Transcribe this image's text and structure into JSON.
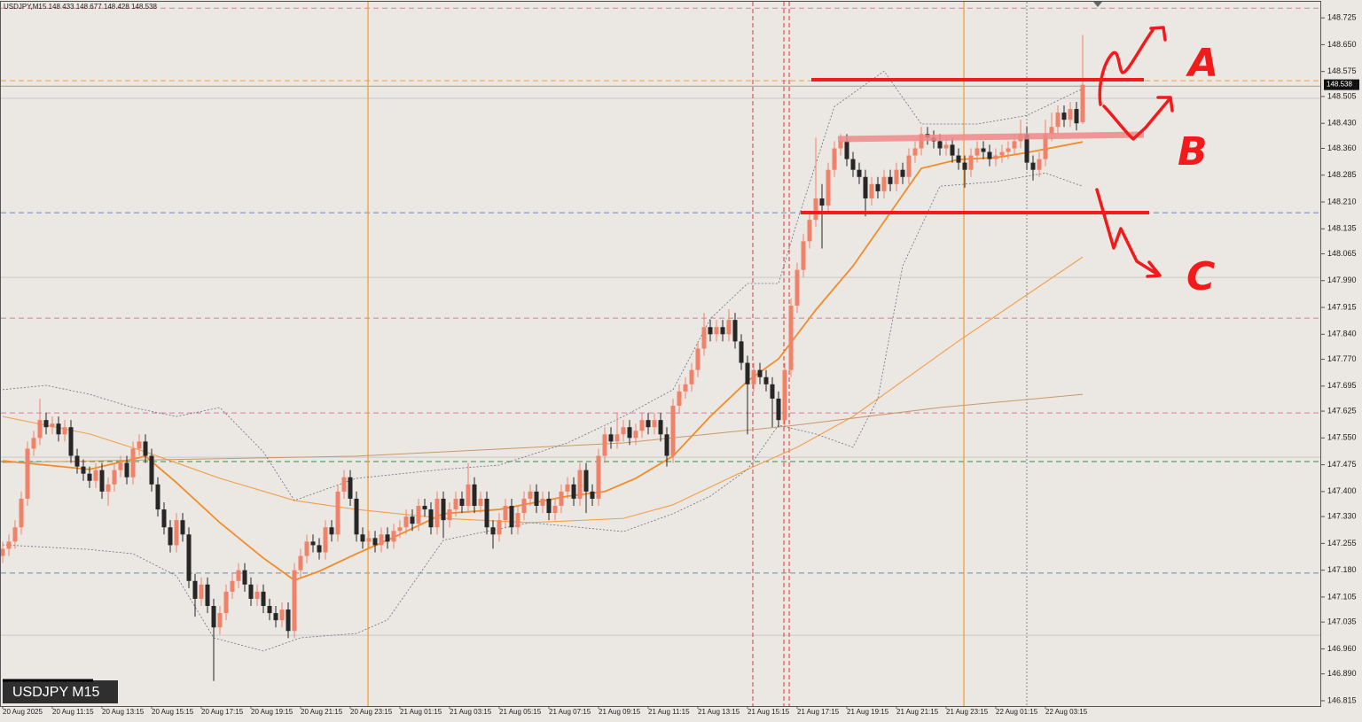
{
  "chart_data": {
    "type": "candlestick",
    "title": "USDJPY,M15",
    "badge": "USDJPY M15",
    "annotations": [
      "A",
      "B",
      "C"
    ],
    "up_color": "#f0826a",
    "down_color": "#262626",
    "ylim": [
      146.8,
      148.77
    ],
    "yticks": [
      {
        "value": 148.725,
        "label": "148.725"
      },
      {
        "value": 148.65,
        "label": "148.650"
      },
      {
        "value": 148.575,
        "label": "148.575"
      },
      {
        "value": 148.505,
        "label": "148.505"
      },
      {
        "value": 148.43,
        "label": "148.430"
      },
      {
        "value": 148.36,
        "label": "148.360"
      },
      {
        "value": 148.285,
        "label": "148.285"
      },
      {
        "value": 148.21,
        "label": "148.210"
      },
      {
        "value": 148.135,
        "label": "148.135"
      },
      {
        "value": 148.065,
        "label": "148.065"
      },
      {
        "value": 147.99,
        "label": "147.990"
      },
      {
        "value": 147.915,
        "label": "147.915"
      },
      {
        "value": 147.84,
        "label": "147.840"
      },
      {
        "value": 147.77,
        "label": "147.770"
      },
      {
        "value": 147.695,
        "label": "147.695"
      },
      {
        "value": 147.625,
        "label": "147.625"
      },
      {
        "value": 147.55,
        "label": "147.550"
      },
      {
        "value": 147.475,
        "label": "147.475"
      },
      {
        "value": 147.4,
        "label": "147.400"
      },
      {
        "value": 147.33,
        "label": "147.330"
      },
      {
        "value": 147.255,
        "label": "147.255"
      },
      {
        "value": 147.18,
        "label": "147.180"
      },
      {
        "value": 147.105,
        "label": "147.105"
      },
      {
        "value": 147.035,
        "label": "147.035"
      },
      {
        "value": 146.96,
        "label": "146.960"
      },
      {
        "value": 146.89,
        "label": "146.890"
      },
      {
        "value": 146.815,
        "label": "146.815"
      }
    ],
    "categories": [
      "20 Aug 2025",
      null,
      null,
      null,
      null,
      null,
      null,
      null,
      "20 Aug 11:15",
      null,
      null,
      null,
      null,
      null,
      null,
      null,
      "20 Aug 13:15",
      null,
      null,
      null,
      null,
      null,
      null,
      null,
      "20 Aug 15:15",
      null,
      null,
      null,
      null,
      null,
      null,
      null,
      "20 Aug 17:15",
      null,
      null,
      null,
      null,
      null,
      null,
      null,
      "20 Aug 19:15",
      null,
      null,
      null,
      null,
      null,
      null,
      null,
      "20 Aug 21:15",
      null,
      null,
      null,
      null,
      null,
      null,
      null,
      "20 Aug 23:15",
      null,
      null,
      null,
      null,
      null,
      null,
      null,
      "21 Aug 01:15",
      null,
      null,
      null,
      null,
      null,
      null,
      null,
      "21 Aug 03:15",
      null,
      null,
      null,
      null,
      null,
      null,
      null,
      "21 Aug 05:15",
      null,
      null,
      null,
      null,
      null,
      null,
      null,
      "21 Aug 07:15",
      null,
      null,
      null,
      null,
      null,
      null,
      null,
      "21 Aug 09:15",
      null,
      null,
      null,
      null,
      null,
      null,
      null,
      "21 Aug 11:15",
      null,
      null,
      null,
      null,
      null,
      null,
      null,
      "21 Aug 13:15",
      null,
      null,
      null,
      null,
      null,
      null,
      null,
      "21 Aug 15:15",
      null,
      null,
      null,
      null,
      null,
      null,
      null,
      "21 Aug 17:15",
      null,
      null,
      null,
      null,
      null,
      null,
      null,
      "21 Aug 19:15",
      null,
      null,
      null,
      null,
      null,
      null,
      null,
      "21 Aug 21:15",
      null,
      null,
      null,
      null,
      null,
      null,
      null,
      "21 Aug 23:15",
      null,
      null,
      null,
      null,
      null,
      null,
      null,
      "22 Aug 01:15",
      null,
      null,
      null,
      null,
      null,
      null,
      null,
      "22 Aug 03:15",
      null,
      null,
      null,
      null,
      null,
      null
    ],
    "open": [
      147.22,
      147.24,
      147.26,
      147.3,
      147.38,
      147.52,
      147.55,
      147.6,
      147.58,
      147.59,
      147.56,
      147.58,
      147.5,
      147.47,
      147.45,
      147.43,
      147.46,
      147.4,
      147.42,
      147.46,
      147.48,
      147.44,
      147.52,
      147.54,
      147.5,
      147.42,
      147.35,
      147.3,
      147.25,
      147.32,
      147.28,
      147.15,
      147.1,
      147.14,
      147.08,
      147.02,
      147.06,
      147.12,
      147.15,
      147.18,
      147.14,
      147.1,
      147.12,
      147.08,
      147.06,
      147.04,
      147.07,
      147.01,
      147.18,
      147.22,
      147.26,
      147.25,
      147.23,
      147.3,
      147.28,
      147.4,
      147.44,
      147.38,
      147.28,
      147.26,
      147.27,
      147.25,
      147.28,
      147.26,
      147.29,
      147.3,
      147.33,
      147.31,
      147.36,
      147.35,
      147.3,
      147.38,
      147.32,
      147.35,
      147.38,
      147.36,
      147.42,
      147.36,
      147.38,
      147.3,
      147.28,
      147.32,
      147.36,
      147.3,
      147.34,
      147.38,
      147.4,
      147.36,
      147.38,
      147.34,
      147.36,
      147.4,
      147.42,
      147.38,
      147.46,
      147.4,
      147.38,
      147.5,
      147.56,
      147.54,
      147.56,
      147.58,
      147.55,
      147.57,
      147.6,
      147.58,
      147.6,
      147.56,
      147.5,
      147.64,
      147.68,
      147.7,
      147.74,
      147.8,
      147.86,
      147.84,
      147.86,
      147.84,
      147.88,
      147.82,
      147.76,
      147.7,
      147.74,
      147.72,
      147.7,
      147.66,
      147.6,
      147.74,
      147.92,
      148.02,
      148.1,
      148.16,
      148.22,
      148.2,
      148.3,
      148.36,
      148.38,
      148.33,
      148.3,
      148.28,
      148.22,
      148.26,
      148.24,
      148.28,
      148.26,
      148.3,
      148.28,
      148.34,
      148.36,
      148.4,
      148.39,
      148.38,
      148.36,
      148.37,
      148.34,
      148.32,
      148.3,
      148.34,
      148.36,
      148.35,
      148.33,
      148.34,
      148.35,
      148.36,
      148.38,
      148.4,
      148.32,
      148.3,
      148.33,
      148.4,
      148.42,
      148.46,
      148.44,
      148.47,
      148.433
    ],
    "high": [
      147.26,
      147.28,
      147.32,
      147.4,
      147.54,
      147.57,
      147.66,
      147.62,
      147.61,
      147.61,
      147.6,
      147.6,
      147.52,
      147.49,
      147.47,
      147.48,
      147.48,
      147.44,
      147.48,
      147.5,
      147.5,
      147.54,
      147.56,
      147.56,
      147.52,
      147.44,
      147.37,
      147.32,
      147.34,
      147.34,
      147.3,
      147.17,
      147.16,
      147.16,
      147.1,
      147.08,
      147.14,
      147.17,
      147.2,
      147.2,
      147.16,
      147.14,
      147.14,
      147.1,
      147.08,
      147.09,
      147.09,
      147.2,
      147.24,
      147.28,
      147.28,
      147.27,
      147.32,
      147.32,
      147.42,
      147.46,
      147.46,
      147.4,
      147.3,
      147.29,
      147.29,
      147.3,
      147.3,
      147.31,
      147.32,
      147.35,
      147.35,
      147.38,
      147.38,
      147.37,
      147.4,
      147.4,
      147.37,
      147.4,
      147.4,
      147.48,
      147.44,
      147.4,
      147.4,
      147.32,
      147.34,
      147.38,
      147.38,
      147.36,
      147.4,
      147.42,
      147.42,
      147.4,
      147.4,
      147.38,
      147.42,
      147.44,
      147.44,
      147.48,
      147.48,
      147.42,
      147.52,
      147.58,
      147.58,
      147.62,
      147.6,
      147.6,
      147.59,
      147.62,
      147.62,
      147.62,
      147.62,
      147.58,
      147.66,
      147.7,
      147.72,
      147.76,
      147.82,
      147.9,
      147.88,
      147.88,
      147.88,
      147.91,
      147.9,
      147.84,
      147.78,
      147.76,
      147.76,
      147.74,
      147.72,
      147.68,
      147.76,
      147.94,
      148.04,
      148.12,
      148.18,
      148.39,
      148.26,
      148.32,
      148.38,
      148.4,
      148.4,
      148.35,
      148.32,
      148.3,
      148.28,
      148.28,
      148.3,
      148.3,
      148.32,
      148.32,
      148.36,
      148.38,
      148.42,
      148.42,
      148.41,
      148.4,
      148.39,
      148.39,
      148.36,
      148.34,
      148.36,
      148.38,
      148.38,
      148.37,
      148.36,
      148.37,
      148.38,
      148.4,
      148.44,
      148.42,
      148.34,
      148.35,
      148.44,
      148.46,
      148.48,
      148.48,
      148.49,
      148.49,
      148.677
    ],
    "low": [
      147.2,
      147.22,
      147.24,
      147.28,
      147.36,
      147.5,
      147.53,
      147.56,
      147.56,
      147.54,
      147.54,
      147.48,
      147.45,
      147.43,
      147.41,
      147.41,
      147.38,
      147.36,
      147.4,
      147.44,
      147.42,
      147.42,
      147.5,
      147.48,
      147.4,
      147.33,
      147.28,
      147.23,
      147.23,
      147.26,
      147.13,
      147.05,
      147.08,
      147.06,
      146.87,
      147.0,
      147.04,
      147.1,
      147.13,
      147.12,
      147.08,
      147.08,
      147.06,
      147.04,
      147.02,
      147.02,
      146.99,
      146.99,
      147.16,
      147.2,
      147.23,
      147.21,
      147.21,
      147.26,
      147.26,
      147.38,
      147.36,
      147.26,
      147.24,
      147.24,
      147.23,
      147.23,
      147.24,
      147.24,
      147.27,
      147.28,
      147.29,
      147.29,
      147.33,
      147.28,
      147.28,
      147.27,
      147.3,
      147.33,
      147.34,
      147.34,
      147.34,
      147.34,
      147.28,
      147.24,
      147.26,
      147.3,
      147.28,
      147.28,
      147.32,
      147.36,
      147.34,
      147.34,
      147.32,
      147.32,
      147.34,
      147.38,
      147.36,
      147.36,
      147.34,
      147.36,
      147.36,
      147.48,
      147.52,
      147.52,
      147.54,
      147.53,
      147.53,
      147.55,
      147.56,
      147.56,
      147.54,
      147.47,
      147.48,
      147.62,
      147.66,
      147.68,
      147.72,
      147.78,
      147.82,
      147.82,
      147.82,
      147.82,
      147.8,
      147.74,
      147.56,
      147.68,
      147.7,
      147.68,
      147.58,
      147.58,
      147.58,
      147.72,
      147.9,
      148.0,
      148.08,
      148.14,
      148.08,
      148.18,
      148.28,
      148.34,
      148.31,
      148.28,
      148.26,
      148.17,
      148.2,
      148.22,
      148.22,
      148.24,
      148.24,
      148.26,
      148.26,
      148.32,
      148.34,
      148.37,
      148.36,
      148.34,
      148.34,
      148.32,
      148.3,
      148.25,
      148.28,
      148.32,
      148.33,
      148.31,
      148.31,
      148.32,
      148.33,
      148.34,
      148.36,
      148.3,
      148.27,
      148.28,
      148.31,
      148.38,
      148.4,
      148.42,
      148.42,
      148.41,
      148.428
    ],
    "close": [
      147.24,
      147.26,
      147.3,
      147.38,
      147.52,
      147.55,
      147.6,
      147.58,
      147.59,
      147.56,
      147.58,
      147.5,
      147.47,
      147.45,
      147.43,
      147.46,
      147.4,
      147.42,
      147.46,
      147.48,
      147.44,
      147.52,
      147.54,
      147.5,
      147.42,
      147.35,
      147.3,
      147.25,
      147.32,
      147.28,
      147.15,
      147.1,
      147.14,
      147.08,
      147.02,
      147.06,
      147.12,
      147.15,
      147.18,
      147.14,
      147.1,
      147.12,
      147.08,
      147.06,
      147.04,
      147.07,
      147.01,
      147.18,
      147.22,
      147.26,
      147.25,
      147.23,
      147.3,
      147.28,
      147.4,
      147.44,
      147.38,
      147.28,
      147.26,
      147.27,
      147.25,
      147.28,
      147.26,
      147.29,
      147.3,
      147.33,
      147.31,
      147.36,
      147.35,
      147.3,
      147.38,
      147.32,
      147.35,
      147.38,
      147.36,
      147.42,
      147.36,
      147.38,
      147.3,
      147.28,
      147.32,
      147.36,
      147.3,
      147.34,
      147.38,
      147.4,
      147.36,
      147.38,
      147.34,
      147.36,
      147.4,
      147.42,
      147.38,
      147.46,
      147.4,
      147.38,
      147.5,
      147.56,
      147.54,
      147.56,
      147.58,
      147.55,
      147.57,
      147.6,
      147.58,
      147.6,
      147.56,
      147.5,
      147.64,
      147.68,
      147.7,
      147.74,
      147.8,
      147.86,
      147.84,
      147.86,
      147.84,
      147.88,
      147.82,
      147.76,
      147.7,
      147.74,
      147.72,
      147.7,
      147.66,
      147.6,
      147.74,
      147.92,
      148.02,
      148.1,
      148.16,
      148.22,
      148.2,
      148.3,
      148.36,
      148.38,
      148.33,
      148.3,
      148.28,
      148.22,
      148.26,
      148.24,
      148.28,
      148.26,
      148.3,
      148.28,
      148.34,
      148.36,
      148.4,
      148.39,
      148.38,
      148.36,
      148.37,
      148.34,
      148.32,
      148.3,
      148.34,
      148.36,
      148.35,
      148.33,
      148.34,
      148.35,
      148.36,
      148.38,
      148.4,
      148.32,
      148.3,
      148.33,
      148.4,
      148.42,
      148.46,
      148.44,
      148.47,
      148.43,
      148.538
    ],
    "indicators": [
      {
        "color": "#f28c28",
        "width": 1.8,
        "dash": false,
        "x": [
          0,
          14,
          23,
          28,
          35,
          42,
          47,
          51,
          57,
          62,
          71,
          80,
          91,
          97,
          102,
          108,
          114,
          120,
          125,
          131,
          137,
          142,
          148,
          154,
          160,
          165,
          174
        ],
        "values": [
          147.486,
          147.462,
          147.499,
          147.425,
          147.313,
          147.214,
          147.152,
          147.177,
          147.226,
          147.264,
          147.338,
          147.35,
          147.387,
          147.4,
          147.437,
          147.499,
          147.61,
          147.709,
          147.771,
          147.908,
          148.031,
          148.155,
          148.304,
          148.329,
          148.334,
          148.348,
          148.378
        ]
      },
      {
        "color": "#f2a04a",
        "width": 1.1,
        "dash": false,
        "x": [
          0,
          14,
          23,
          35,
          47,
          57,
          71,
          85,
          100,
          108,
          120,
          128,
          137,
          154,
          174
        ],
        "values": [
          147.61,
          147.561,
          147.511,
          147.437,
          147.375,
          147.35,
          147.325,
          147.313,
          147.325,
          147.363,
          147.462,
          147.524,
          147.61,
          147.821,
          148.056
        ]
      },
      {
        "color": "#c89a6a",
        "width": 1,
        "dash": false,
        "x": [
          0,
          57,
          100,
          128,
          151,
          174
        ],
        "values": [
          147.481,
          147.499,
          147.536,
          147.586,
          147.635,
          147.672
        ]
      },
      {
        "color": "#6a6f85",
        "width": 0.8,
        "dash": true,
        "x": [
          0,
          7,
          14,
          21,
          28,
          35,
          42,
          47,
          57,
          71,
          80,
          91,
          100,
          108,
          114,
          120,
          125,
          128,
          134,
          142,
          145,
          148,
          157,
          165,
          174
        ],
        "values": [
          147.685,
          147.697,
          147.672,
          147.635,
          147.61,
          147.635,
          147.511,
          147.375,
          147.437,
          147.462,
          147.474,
          147.536,
          147.61,
          147.685,
          147.883,
          147.982,
          147.982,
          148.155,
          148.477,
          148.576,
          148.502,
          148.428,
          148.428,
          148.452,
          148.527
        ]
      },
      {
        "color": "#6a6f85",
        "width": 0.8,
        "dash": true,
        "x": [
          0,
          14,
          21,
          28,
          34,
          42,
          48,
          57,
          62,
          71,
          85,
          100,
          108,
          114,
          120,
          125,
          131,
          137,
          141,
          145,
          151,
          160,
          168,
          174
        ],
        "values": [
          147.251,
          147.238,
          147.226,
          147.164,
          146.991,
          146.954,
          146.991,
          147.003,
          147.041,
          147.264,
          147.313,
          147.288,
          147.338,
          147.387,
          147.462,
          147.586,
          147.561,
          147.524,
          147.66,
          148.031,
          148.254,
          148.267,
          148.291,
          148.254
        ]
      }
    ],
    "levels": [
      {
        "value": 148.752,
        "color": "#e07aa0",
        "dash": true
      },
      {
        "value": 148.549,
        "color": "#f2a040",
        "dash": true
      },
      {
        "value": 148.534,
        "color": "#a0a0a0",
        "dash": false
      },
      {
        "value": 148.5,
        "color": "#c8c8c8",
        "dash": false
      },
      {
        "value": 148.18,
        "color": "#6a8ab8",
        "dash": true
      },
      {
        "value": 147.999,
        "color": "#c8c8c8",
        "dash": false
      },
      {
        "value": 147.885,
        "color": "#e07aa0",
        "dash": true
      },
      {
        "value": 147.62,
        "color": "#e07aa0",
        "dash": true
      },
      {
        "value": 147.496,
        "color": "#c8c8c8",
        "dash": false
      },
      {
        "value": 147.484,
        "color": "#3a8a4a",
        "dash": true
      },
      {
        "value": 147.172,
        "color": "#6a8ab8",
        "dash": true
      },
      {
        "value": 146.998,
        "color": "#c8c8c8",
        "dash": false
      }
    ]
  }
}
